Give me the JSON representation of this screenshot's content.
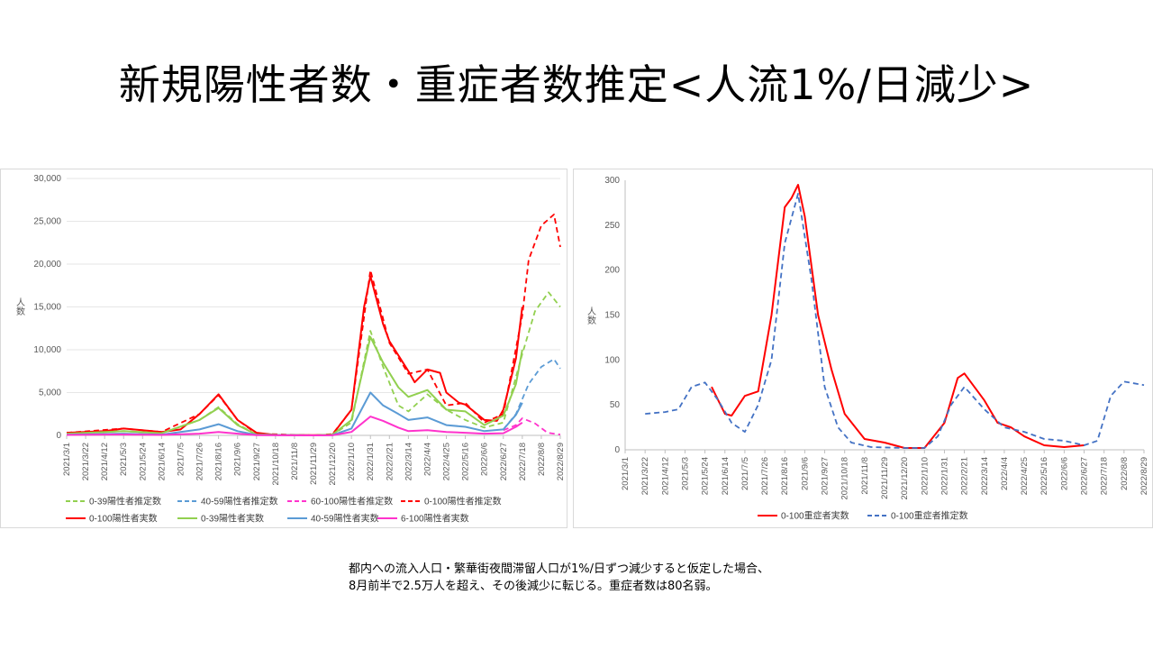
{
  "title": "新規陽性者数・重症者数推定<人流1%/日減少>",
  "caption": {
    "line1": "都内への流入人口・繁華街夜間滞留人口が1%/日ずつ減少すると仮定した場合、",
    "line2": "8月前半で2.5万人を超え、その後減少に転じる。重症者数は80名弱。"
  },
  "chart_data": [
    {
      "type": "line",
      "title": "",
      "ylabel": "人数",
      "ylim": [
        0,
        30000
      ],
      "yticks": [
        0,
        5000,
        10000,
        15000,
        20000,
        25000,
        30000
      ],
      "ytick_labels": [
        "0",
        "5,000",
        "10,000",
        "15,000",
        "20,000",
        "25,000",
        "30,000"
      ],
      "x_start": "2021-03-01",
      "x_end": "2022-08-29",
      "xticks": [
        "2021/3/1",
        "2021/3/22",
        "2021/4/12",
        "2021/5/3",
        "2021/5/24",
        "2021/6/14",
        "2021/7/5",
        "2021/7/26",
        "2021/8/16",
        "2021/9/6",
        "2021/9/27",
        "2021/10/18",
        "2021/11/8",
        "2021/11/29",
        "2021/12/20",
        "2022/1/10",
        "2022/1/31",
        "2022/2/21",
        "2022/3/14",
        "2022/4/4",
        "2022/4/25",
        "2022/5/16",
        "2022/6/6",
        "2022/6/27",
        "2022/7/18",
        "2022/8/8",
        "2022/8/29"
      ],
      "legend_position": "bottom",
      "series": [
        {
          "name": "0-39陽性者推定数",
          "color": "#92d050",
          "dash": true,
          "x": [
            "2021/3/1",
            "2021/5/3",
            "2021/6/14",
            "2021/7/26",
            "2021/8/16",
            "2021/9/6",
            "2021/9/27",
            "2021/11/29",
            "2021/12/20",
            "2022/1/10",
            "2022/1/31",
            "2022/2/14",
            "2022/3/3",
            "2022/3/14",
            "2022/4/4",
            "2022/4/25",
            "2022/5/16",
            "2022/6/6",
            "2022/6/27",
            "2022/7/18",
            "2022/8/1",
            "2022/8/16",
            "2022/8/29"
          ],
          "values": [
            200,
            500,
            250,
            1800,
            3300,
            1300,
            100,
            0,
            80,
            1500,
            12200,
            8000,
            3500,
            2800,
            4800,
            3000,
            1800,
            900,
            1500,
            9500,
            14500,
            16700,
            15000
          ]
        },
        {
          "name": "40-59陽性者推定数",
          "color": "#5b9bd5",
          "dash": true,
          "x": [
            "2022/6/27",
            "2022/7/11",
            "2022/7/25",
            "2022/8/8",
            "2022/8/22",
            "2022/8/29"
          ],
          "values": [
            700,
            2500,
            6000,
            8000,
            8900,
            7800
          ]
        },
        {
          "name": "60-100陽性者推定数",
          "color": "#ff33cc",
          "dash": true,
          "x": [
            "2022/6/27",
            "2022/7/11",
            "2022/7/18",
            "2022/8/1",
            "2022/8/15",
            "2022/8/29"
          ],
          "values": [
            600,
            1200,
            2000,
            1400,
            300,
            100
          ]
        },
        {
          "name": "0-100陽性者推定数",
          "color": "#ff0000",
          "dash": true,
          "x": [
            "2021/3/1",
            "2021/5/3",
            "2021/6/14",
            "2021/7/26",
            "2021/8/16",
            "2021/9/6",
            "2021/9/27",
            "2021/11/29",
            "2021/12/20",
            "2022/1/10",
            "2022/1/31",
            "2022/2/21",
            "2022/3/14",
            "2022/4/4",
            "2022/4/25",
            "2022/5/16",
            "2022/6/6",
            "2022/6/27",
            "2022/7/18",
            "2022/7/25",
            "2022/8/8",
            "2022/8/22",
            "2022/8/29"
          ],
          "values": [
            300,
            800,
            400,
            2500,
            4700,
            1800,
            200,
            0,
            150,
            3000,
            19300,
            10800,
            7200,
            7700,
            3500,
            3800,
            1500,
            2500,
            14000,
            20500,
            24500,
            25800,
            22000
          ]
        },
        {
          "name": "0-100陽性者実数",
          "color": "#ff0000",
          "dash": false,
          "x": [
            "2021/3/1",
            "2021/4/12",
            "2021/5/3",
            "2021/6/14",
            "2021/7/5",
            "2021/7/26",
            "2021/8/16",
            "2021/9/6",
            "2021/9/27",
            "2021/10/18",
            "2021/11/29",
            "2021/12/20",
            "2022/1/10",
            "2022/1/24",
            "2022/1/31",
            "2022/2/14",
            "2022/2/21",
            "2022/3/14",
            "2022/3/21",
            "2022/4/4",
            "2022/4/18",
            "2022/4/25",
            "2022/5/9",
            "2022/5/16",
            "2022/6/6",
            "2022/6/20",
            "2022/6/27",
            "2022/7/11",
            "2022/7/18"
          ],
          "values": [
            300,
            500,
            800,
            400,
            700,
            2500,
            4800,
            1800,
            300,
            50,
            20,
            80,
            3000,
            15000,
            18600,
            13000,
            11000,
            7500,
            6200,
            7700,
            7300,
            5000,
            3800,
            3600,
            1800,
            1700,
            3000,
            9000,
            15000
          ]
        },
        {
          "name": "0-39陽性者実数",
          "color": "#92d050",
          "dash": false,
          "x": [
            "2021/3/1",
            "2021/5/3",
            "2021/6/14",
            "2021/7/26",
            "2021/8/16",
            "2021/9/6",
            "2021/9/27",
            "2021/11/29",
            "2021/12/20",
            "2022/1/10",
            "2022/1/31",
            "2022/2/14",
            "2022/3/3",
            "2022/3/14",
            "2022/4/4",
            "2022/4/25",
            "2022/5/16",
            "2022/6/6",
            "2022/6/27",
            "2022/7/11",
            "2022/7/18"
          ],
          "values": [
            200,
            500,
            250,
            1800,
            3200,
            1200,
            100,
            0,
            80,
            1800,
            11500,
            8500,
            5600,
            4500,
            5300,
            3000,
            2800,
            1200,
            2300,
            6000,
            10000
          ]
        },
        {
          "name": "40-59陽性者実数",
          "color": "#5b9bd5",
          "dash": false,
          "x": [
            "2021/3/1",
            "2021/5/3",
            "2021/6/14",
            "2021/7/26",
            "2021/8/16",
            "2021/9/6",
            "2021/9/27",
            "2021/11/29",
            "2021/12/20",
            "2022/1/10",
            "2022/1/31",
            "2022/2/14",
            "2022/3/3",
            "2022/3/14",
            "2022/4/4",
            "2022/4/25",
            "2022/5/16",
            "2022/6/6",
            "2022/6/27",
            "2022/7/11",
            "2022/7/18"
          ],
          "values": [
            80,
            200,
            100,
            700,
            1300,
            500,
            50,
            0,
            30,
            800,
            5000,
            3500,
            2500,
            1800,
            2100,
            1200,
            1000,
            500,
            700,
            2400,
            3800
          ]
        },
        {
          "name": "6-100陽性者実数",
          "color": "#ff33cc",
          "dash": false,
          "x": [
            "2021/3/1",
            "2021/5/3",
            "2021/6/14",
            "2021/7/26",
            "2021/8/16",
            "2021/9/6",
            "2021/9/27",
            "2021/11/29",
            "2021/12/20",
            "2022/1/10",
            "2022/1/31",
            "2022/2/14",
            "2022/3/3",
            "2022/3/14",
            "2022/4/4",
            "2022/4/25",
            "2022/5/16",
            "2022/6/6",
            "2022/6/27",
            "2022/7/11",
            "2022/7/18"
          ],
          "values": [
            50,
            100,
            50,
            200,
            400,
            200,
            20,
            0,
            10,
            400,
            2200,
            1700,
            900,
            500,
            600,
            400,
            300,
            200,
            250,
            1000,
            1500
          ]
        }
      ]
    },
    {
      "type": "line",
      "title": "",
      "ylabel": "人数",
      "ylim": [
        0,
        300
      ],
      "yticks": [
        0,
        50,
        100,
        150,
        200,
        250,
        300
      ],
      "ytick_labels": [
        "0",
        "50",
        "100",
        "150",
        "200",
        "250",
        "300"
      ],
      "x_start": "2021-03-01",
      "x_end": "2022-08-29",
      "xticks": [
        "2021/3/1",
        "2021/3/22",
        "2021/4/12",
        "2021/5/3",
        "2021/5/24",
        "2021/6/14",
        "2021/7/5",
        "2021/7/26",
        "2021/8/16",
        "2021/9/6",
        "2021/9/27",
        "2021/10/18",
        "2021/11/8",
        "2021/11/29",
        "2021/12/20",
        "2022/1/10",
        "2022/1/31",
        "2022/2/21",
        "2022/3/14",
        "2022/4/4",
        "2022/4/25",
        "2022/5/16",
        "2022/6/6",
        "2022/6/27",
        "2022/7/18",
        "2022/8/8",
        "2022/8/29"
      ],
      "legend_position": "bottom",
      "series": [
        {
          "name": "0-100重症者実数",
          "color": "#ff0000",
          "dash": false,
          "x": [
            "2021/5/31",
            "2021/6/7",
            "2021/6/14",
            "2021/6/21",
            "2021/7/5",
            "2021/7/19",
            "2021/8/2",
            "2021/8/16",
            "2021/8/23",
            "2021/8/30",
            "2021/9/6",
            "2021/9/20",
            "2021/10/4",
            "2021/10/18",
            "2021/11/8",
            "2021/11/29",
            "2021/12/20",
            "2022/1/10",
            "2022/1/31",
            "2022/2/14",
            "2022/2/21",
            "2022/3/7",
            "2022/3/14",
            "2022/3/28",
            "2022/4/11",
            "2022/4/25",
            "2022/5/16",
            "2022/6/6",
            "2022/6/27"
          ],
          "values": [
            70,
            55,
            40,
            38,
            60,
            65,
            150,
            270,
            280,
            295,
            260,
            150,
            90,
            40,
            12,
            8,
            2,
            2,
            30,
            80,
            85,
            65,
            55,
            30,
            25,
            15,
            5,
            3,
            5
          ]
        },
        {
          "name": "0-100重症者推定数",
          "color": "#4472c4",
          "dash": true,
          "x": [
            "2021/3/22",
            "2021/4/12",
            "2021/4/26",
            "2021/5/10",
            "2021/5/24",
            "2021/6/7",
            "2021/6/21",
            "2021/7/5",
            "2021/7/19",
            "2021/8/2",
            "2021/8/16",
            "2021/8/30",
            "2021/9/13",
            "2021/9/27",
            "2021/10/11",
            "2021/10/25",
            "2021/11/15",
            "2021/12/20",
            "2022/1/10",
            "2022/1/24",
            "2022/2/7",
            "2022/2/21",
            "2022/3/14",
            "2022/4/4",
            "2022/4/25",
            "2022/5/16",
            "2022/6/6",
            "2022/6/27",
            "2022/7/11",
            "2022/7/25",
            "2022/8/8",
            "2022/8/29"
          ],
          "values": [
            40,
            42,
            45,
            70,
            75,
            55,
            30,
            20,
            50,
            100,
            230,
            285,
            190,
            70,
            25,
            8,
            3,
            2,
            2,
            15,
            50,
            70,
            45,
            25,
            20,
            12,
            10,
            5,
            10,
            60,
            76,
            72
          ]
        }
      ]
    }
  ]
}
